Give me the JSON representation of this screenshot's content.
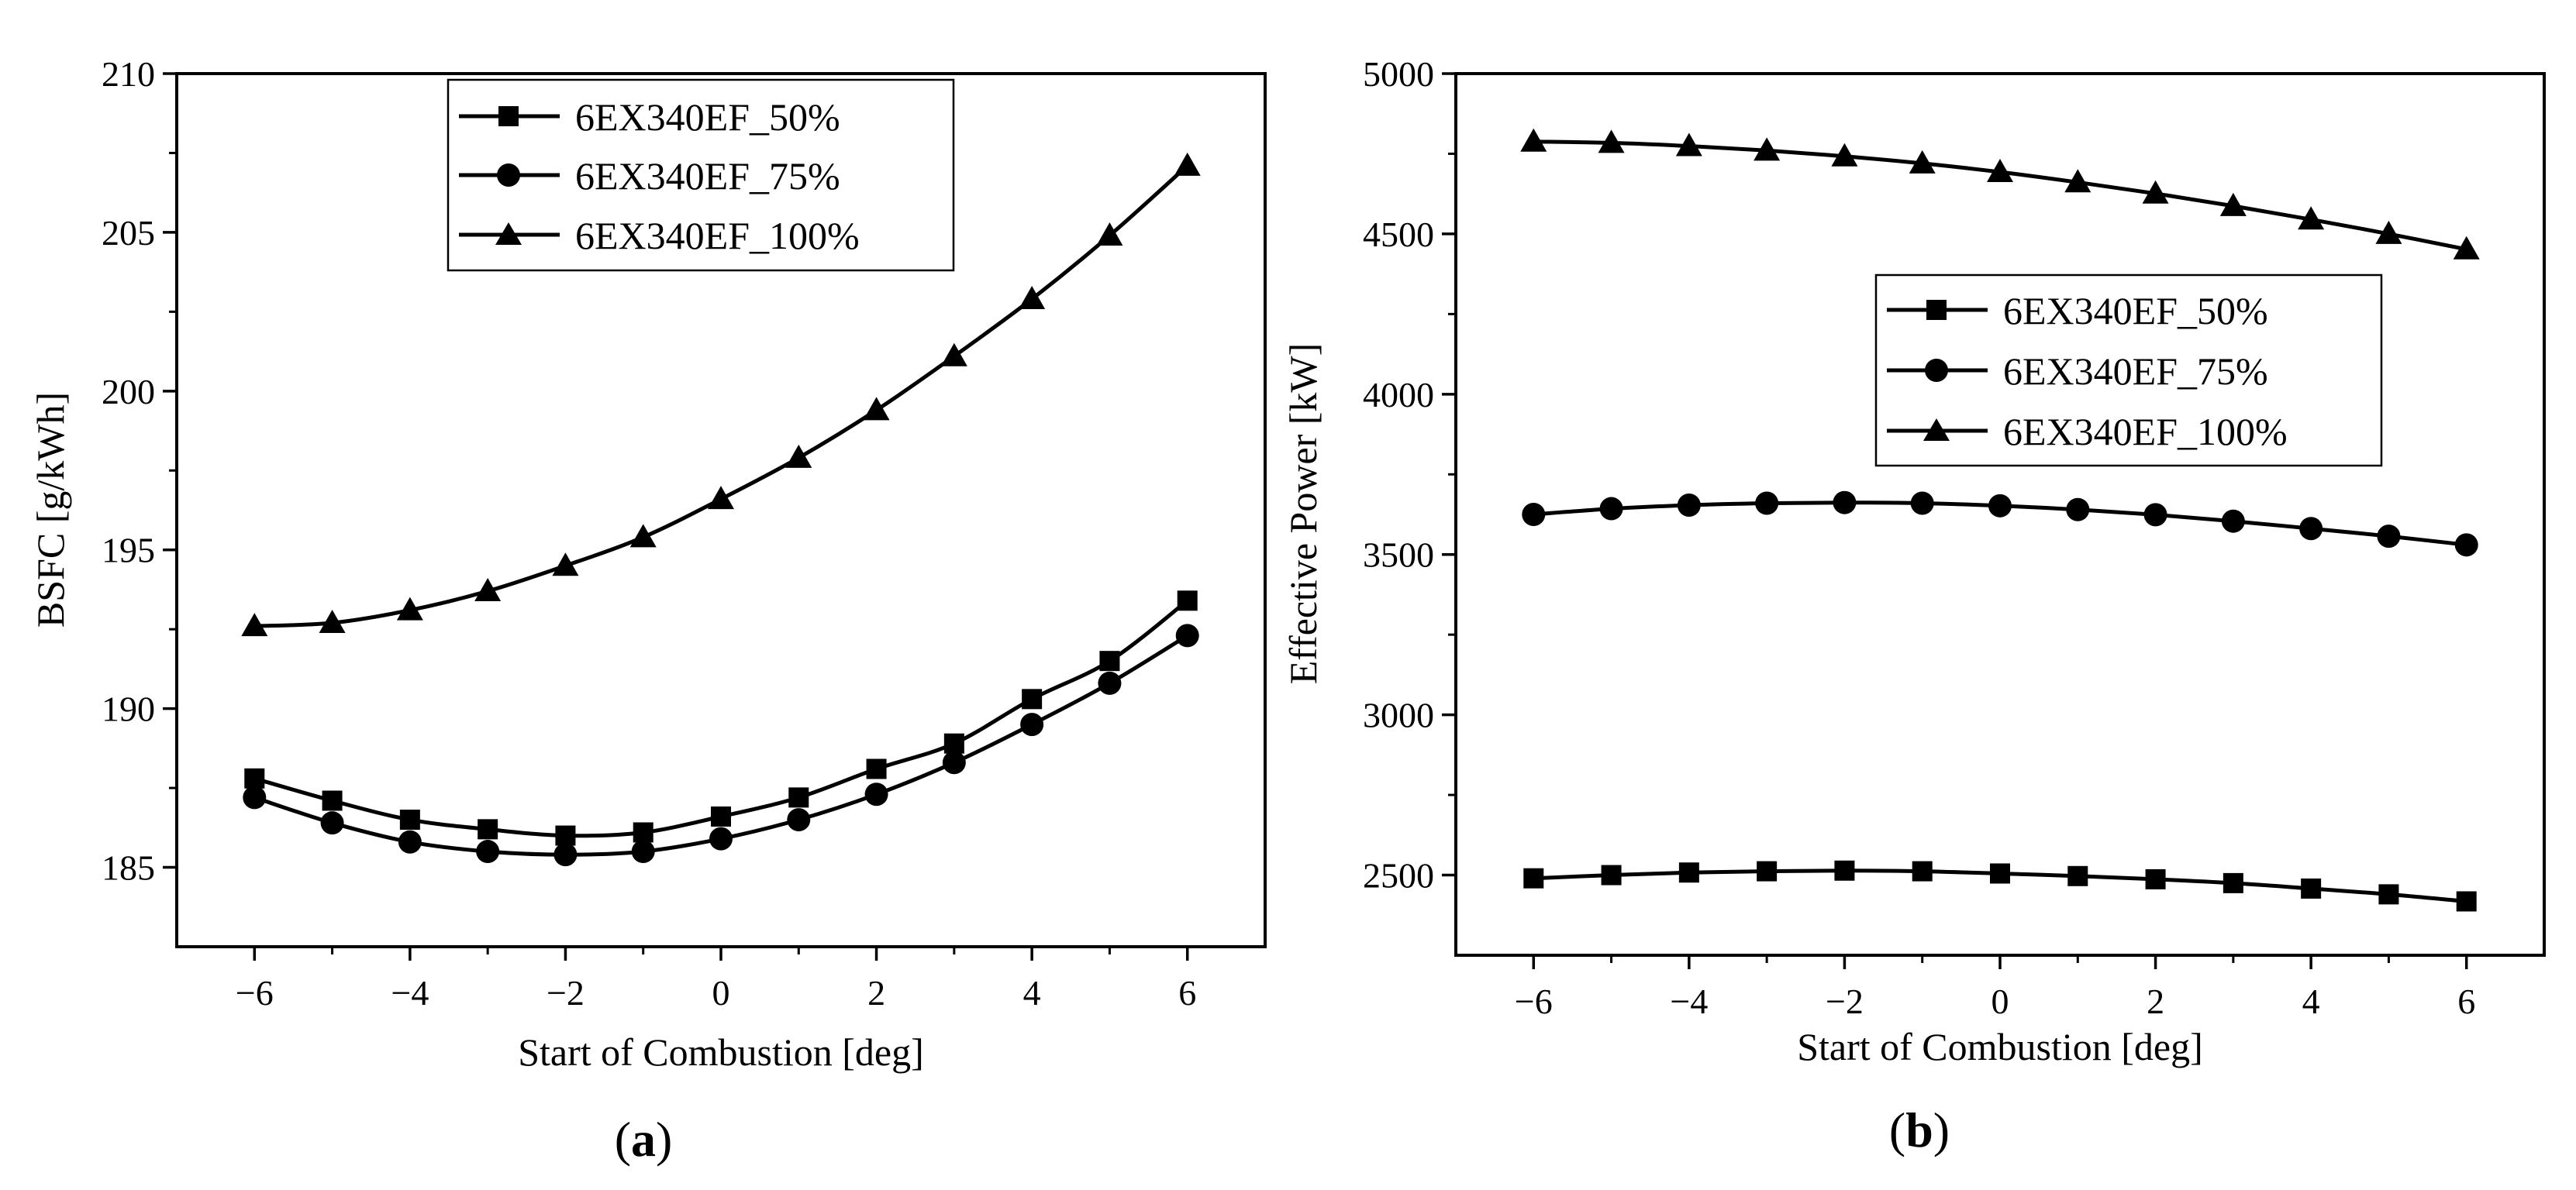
{
  "chart_data": [
    {
      "type": "line",
      "panel_label_open": "(",
      "panel_label": "a",
      "panel_label_close": ")",
      "xlabel": "Start of Combustion [deg]",
      "ylabel": "BSFC [g/kWh]",
      "xlim": [
        -7,
        7
      ],
      "ylim": [
        182.5,
        210
      ],
      "xticks": [
        -6,
        -4,
        -2,
        0,
        2,
        4,
        6
      ],
      "xtick_labels": [
        "−6",
        "−4",
        "−2",
        "0",
        "2",
        "4",
        "6"
      ],
      "yticks": [
        185,
        190,
        195,
        200,
        205,
        210
      ],
      "ytick_labels": [
        "185",
        "190",
        "195",
        "200",
        "205",
        "210"
      ],
      "x": [
        -6,
        -5,
        -4,
        -3,
        -2,
        -1,
        0,
        1,
        2,
        3,
        4,
        5,
        6
      ],
      "legend_position": "top-center",
      "series": [
        {
          "name": "6EX340EF_50%",
          "marker": "square",
          "values": [
            187.8,
            187.1,
            186.5,
            186.2,
            186.0,
            186.1,
            186.6,
            187.2,
            188.1,
            188.9,
            190.3,
            191.5,
            193.4
          ]
        },
        {
          "name": "6EX340EF_75%",
          "marker": "circle",
          "values": [
            187.2,
            186.4,
            185.8,
            185.5,
            185.4,
            185.5,
            185.9,
            186.5,
            187.3,
            188.3,
            189.5,
            190.8,
            192.3
          ]
        },
        {
          "name": "6EX340EF_100%",
          "marker": "triangle",
          "values": [
            192.6,
            192.7,
            193.1,
            193.7,
            194.5,
            195.4,
            196.6,
            197.9,
            199.4,
            201.1,
            202.9,
            204.9,
            207.1
          ]
        }
      ]
    },
    {
      "type": "line",
      "panel_label_open": "(",
      "panel_label": "b",
      "panel_label_close": ")",
      "xlabel": "Start of Combustion [deg]",
      "ylabel": "Effective Power [kW]",
      "xlim": [
        -7,
        7
      ],
      "ylim": [
        2250,
        5000
      ],
      "xticks": [
        -6,
        -4,
        -2,
        0,
        2,
        4,
        6
      ],
      "xtick_labels": [
        "−6",
        "−4",
        "−2",
        "0",
        "2",
        "4",
        "6"
      ],
      "yticks": [
        2500,
        3000,
        3500,
        4000,
        4500,
        5000
      ],
      "ytick_labels": [
        "2500",
        "3000",
        "3500",
        "4000",
        "4500",
        "5000"
      ],
      "x": [
        -6,
        -5,
        -4,
        -3,
        -2,
        -1,
        0,
        1,
        2,
        3,
        4,
        5,
        6
      ],
      "legend_position": "upper-right",
      "series": [
        {
          "name": "6EX340EF_50%",
          "marker": "square",
          "values": [
            2490,
            2500,
            2508,
            2512,
            2514,
            2512,
            2505,
            2497,
            2487,
            2475,
            2458,
            2440,
            2418
          ]
        },
        {
          "name": "6EX340EF_75%",
          "marker": "circle",
          "values": [
            3625,
            3643,
            3654,
            3660,
            3662,
            3660,
            3652,
            3640,
            3624,
            3604,
            3581,
            3557,
            3530
          ]
        },
        {
          "name": "6EX340EF_100%",
          "marker": "triangle",
          "values": [
            4788,
            4784,
            4774,
            4760,
            4742,
            4720,
            4693,
            4661,
            4626,
            4587,
            4545,
            4500,
            4452
          ]
        }
      ]
    }
  ]
}
